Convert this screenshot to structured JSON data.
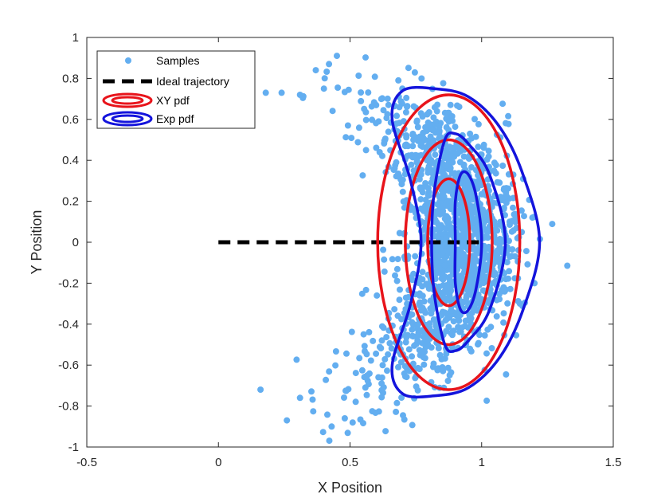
{
  "chart_data": {
    "type": "scatter",
    "title": "",
    "xlabel": "X Position",
    "ylabel": "Y Position",
    "xlim": [
      -0.5,
      1.5
    ],
    "ylim": [
      -1,
      1
    ],
    "xticks": [
      -0.5,
      0,
      0.5,
      1,
      1.5
    ],
    "xtick_labels": [
      "-0.5",
      "0",
      "0.5",
      "1",
      "1.5"
    ],
    "yticks": [
      -1,
      -0.8,
      -0.6,
      -0.4,
      -0.2,
      0,
      0.2,
      0.4,
      0.6,
      0.8,
      1
    ],
    "ytick_labels": [
      "-1",
      "-0.8",
      "-0.6",
      "-0.4",
      "-0.2",
      "0",
      "0.2",
      "0.4",
      "0.6",
      "0.8",
      "1"
    ],
    "grid": false,
    "legend_position": "top-left",
    "legend": [
      {
        "label": "Samples",
        "style": "marker",
        "color": "#63aef0"
      },
      {
        "label": "Ideal trajectory",
        "style": "dashed",
        "color": "#000000"
      },
      {
        "label": "XY pdf",
        "style": "contour",
        "color": "#e8141b"
      },
      {
        "label": "Exp pdf",
        "style": "contour",
        "color": "#1414dc"
      }
    ],
    "series": [
      {
        "name": "Samples",
        "kind": "scatter",
        "color": "#63aef0",
        "arc_center": [
          0.1,
          0.0
        ],
        "arc_radius_mean": 0.85,
        "arc_radius_sd": 0.1,
        "angle_range_deg": [
          -75,
          75
        ],
        "angle_sd_deg": 26,
        "count": 1600,
        "outlier_points": [
          [
            0.45,
            0.91
          ],
          [
            0.42,
            0.87
          ],
          [
            0.37,
            0.84
          ],
          [
            0.18,
            0.73
          ],
          [
            0.24,
            0.73
          ],
          [
            0.31,
            0.72
          ],
          [
            0.16,
            -0.72
          ],
          [
            0.26,
            -0.87
          ],
          [
            0.31,
            -0.76
          ],
          [
            0.43,
            -0.9
          ],
          [
            0.48,
            -0.86
          ],
          [
            0.51,
            -0.88
          ]
        ]
      },
      {
        "name": "Ideal trajectory",
        "kind": "line",
        "style": "dashed",
        "color": "#000000",
        "x": [
          0,
          1
        ],
        "y": [
          0,
          0
        ]
      },
      {
        "name": "XY pdf",
        "kind": "contour",
        "color": "#e8141b",
        "ellipses": [
          {
            "cx": 0.875,
            "cy": 0,
            "rx": 0.27,
            "ry": 0.72
          },
          {
            "cx": 0.875,
            "cy": 0,
            "rx": 0.165,
            "ry": 0.5
          },
          {
            "cx": 0.875,
            "cy": 0,
            "rx": 0.08,
            "ry": 0.31
          }
        ]
      },
      {
        "name": "Exp pdf",
        "kind": "contour",
        "color": "#1414dc",
        "contours": [
          {
            "x": [
              1.22,
              1.16,
              1.07,
              0.95,
              0.82,
              0.7,
              0.66,
              0.73,
              0.77,
              0.73,
              0.66,
              0.7,
              0.82,
              0.95,
              1.07,
              1.16,
              1.22
            ],
            "y": [
              0,
              0.32,
              0.56,
              0.71,
              0.75,
              0.74,
              0.6,
              0.3,
              0,
              -0.3,
              -0.6,
              -0.74,
              -0.75,
              -0.71,
              -0.56,
              -0.32,
              0
            ]
          },
          {
            "x": [
              1.09,
              1.03,
              0.95,
              0.9,
              0.86,
              0.82,
              0.81,
              0.82,
              0.86,
              0.9,
              0.95,
              1.03,
              1.09
            ],
            "y": [
              0,
              0.33,
              0.48,
              0.53,
              0.5,
              0.25,
              0,
              -0.25,
              -0.5,
              -0.53,
              -0.48,
              -0.33,
              0
            ]
          },
          {
            "x": [
              1.0,
              0.98,
              0.95,
              0.92,
              0.9,
              0.9,
              0.9,
              0.92,
              0.95,
              0.98,
              1.0
            ],
            "y": [
              0,
              0.22,
              0.33,
              0.33,
              0.2,
              0,
              -0.2,
              -0.33,
              -0.33,
              -0.22,
              0
            ]
          }
        ]
      }
    ]
  }
}
